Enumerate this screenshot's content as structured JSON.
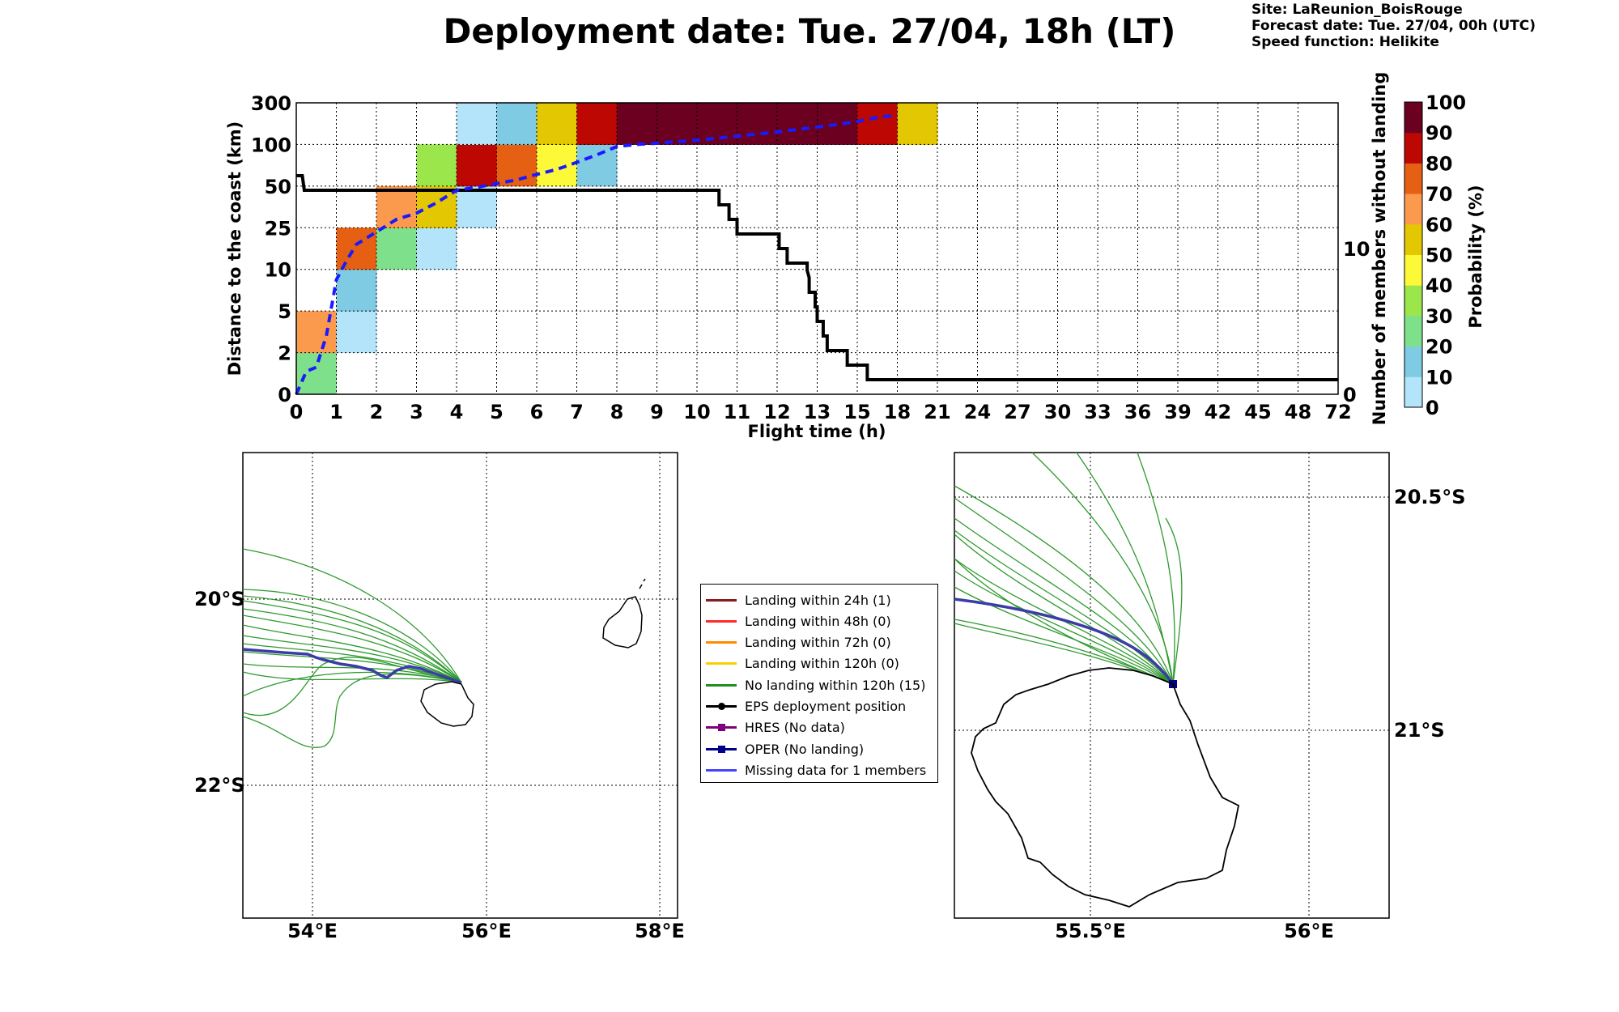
{
  "title": "Deployment date: Tue. 27/04, 18h (LT)",
  "info": {
    "site": "Site: LaReunion_BoisRouge",
    "forecast": "Forecast date: Tue. 27/04, 00h (UTC)",
    "speed": "Speed function: Helikite"
  },
  "chart_data": [
    {
      "type": "heatmap",
      "xlabel": "Flight time (h)",
      "ylabel": "Distance to the coast (km)",
      "y2label": "Number of members without landing",
      "x_ticks": [
        "0",
        "1",
        "2",
        "3",
        "4",
        "5",
        "6",
        "7",
        "8",
        "9",
        "10",
        "11",
        "12",
        "13",
        "15",
        "18",
        "21",
        "24",
        "27",
        "30",
        "33",
        "36",
        "39",
        "42",
        "45",
        "48",
        "72"
      ],
      "y_ticks": [
        "0",
        "2",
        "5",
        "10",
        "25",
        "50",
        "100",
        "300"
      ],
      "y2_ticks": [
        "0",
        "10"
      ],
      "colorbar": {
        "label": "Probability (%)",
        "ticks": [
          "0",
          "10",
          "20",
          "30",
          "40",
          "50",
          "60",
          "70",
          "80",
          "90",
          "100"
        ],
        "colors": [
          "#b3e4f9",
          "#7fcbe3",
          "#7fe08c",
          "#9be64b",
          "#fcf938",
          "#e4c703",
          "#fb9a4d",
          "#e66013",
          "#bc0703",
          "#6b0020"
        ]
      },
      "cells": [
        {
          "t": 0,
          "d": 0,
          "p": 20
        },
        {
          "t": 0,
          "d": 1,
          "p": 60
        },
        {
          "t": 1,
          "d": 1,
          "p": 0
        },
        {
          "t": 1,
          "d": 2,
          "p": 10
        },
        {
          "t": 1,
          "d": 3,
          "p": 70
        },
        {
          "t": 2,
          "d": 3,
          "p": 20
        },
        {
          "t": 2,
          "d": 4,
          "p": 60
        },
        {
          "t": 3,
          "d": 3,
          "p": 0
        },
        {
          "t": 3,
          "d": 4,
          "p": 50
        },
        {
          "t": 3,
          "d": 5,
          "p": 30
        },
        {
          "t": 4,
          "d": 4,
          "p": 0
        },
        {
          "t": 4,
          "d": 5,
          "p": 80
        },
        {
          "t": 4,
          "d": 6,
          "p": 0
        },
        {
          "t": 5,
          "d": 5,
          "p": 70
        },
        {
          "t": 5,
          "d": 6,
          "p": 10
        },
        {
          "t": 6,
          "d": 5,
          "p": 40
        },
        {
          "t": 6,
          "d": 6,
          "p": 50
        },
        {
          "t": 7,
          "d": 5,
          "p": 10
        },
        {
          "t": 7,
          "d": 6,
          "p": 80
        },
        {
          "t": 8,
          "d": 6,
          "p": 90
        },
        {
          "t": 9,
          "d": 6,
          "p": 90
        },
        {
          "t": 10,
          "d": 6,
          "p": 90
        },
        {
          "t": 11,
          "d": 6,
          "p": 90
        },
        {
          "t": 12,
          "d": 6,
          "p": 90
        },
        {
          "t": 13,
          "d": 6,
          "p": 90
        },
        {
          "t": 14,
          "d": 6,
          "p": 80
        },
        {
          "t": 15,
          "d": 6,
          "p": 50
        }
      ],
      "median_distance": {
        "x": [
          0,
          0.25,
          0.5,
          0.75,
          1,
          1.25,
          1.5,
          2,
          2.5,
          3,
          3.5,
          4,
          4.5,
          5,
          5.5,
          6,
          6.5,
          7,
          7.5,
          8,
          8.5,
          9,
          9.5,
          10,
          10.5,
          11,
          11.5,
          12,
          12.5,
          13,
          13.5,
          14,
          14.5,
          15
        ],
        "y": [
          0,
          0.55,
          0.65,
          1.4,
          2.75,
          3.2,
          3.6,
          3.9,
          4.2,
          4.35,
          4.6,
          4.9,
          4.97,
          5.06,
          5.15,
          5.28,
          5.4,
          5.57,
          5.75,
          5.95,
          6.0,
          6.03,
          6.07,
          6.1,
          6.15,
          6.2,
          6.25,
          6.3,
          6.36,
          6.42,
          6.48,
          6.55,
          6.65,
          6.7
        ]
      },
      "members_without_landing": {
        "x": [
          0,
          0.15,
          0.2,
          0.25,
          10.35,
          10.55,
          10.55,
          10.8,
          10.8,
          11,
          11,
          12.05,
          12.05,
          12.25,
          12.25,
          12.75,
          12.75,
          12.8,
          12.8,
          12.95,
          12.95,
          13,
          13,
          13.15,
          13.15,
          13.25,
          13.25,
          13.75,
          13.75,
          14.25,
          14.25,
          14.9,
          14.9
        ],
        "y": [
          15,
          15,
          14,
          14,
          14,
          14,
          13,
          13,
          12,
          12,
          11,
          11,
          10,
          10,
          9,
          9,
          8.5,
          8,
          7,
          7,
          6,
          6,
          5,
          5,
          4,
          4,
          3,
          3,
          2,
          2,
          1,
          1,
          1
        ]
      }
    }
  ],
  "maps": {
    "left": {
      "lat_labels": [
        "20°S",
        "22°S"
      ],
      "lon_labels": [
        "54°E",
        "56°E",
        "58°E"
      ]
    },
    "right": {
      "lat_labels": [
        "20.5°S",
        "21°S"
      ],
      "lon_labels": [
        "55.5°E",
        "56°E"
      ]
    }
  },
  "legend": [
    {
      "label": "Landing within 24h (1)",
      "color": "#8b1a1a",
      "marker": "none"
    },
    {
      "label": "Landing within 48h (0)",
      "color": "#ff2a2a",
      "marker": "none"
    },
    {
      "label": "Landing within 72h (0)",
      "color": "#ff8c00",
      "marker": "none"
    },
    {
      "label": "Landing within 120h (0)",
      "color": "#f5d000",
      "marker": "none"
    },
    {
      "label": "No landing within 120h (15)",
      "color": "#1f8f1f",
      "marker": "none"
    },
    {
      "label": "EPS deployment position",
      "color": "#000000",
      "marker": "circle"
    },
    {
      "label": "HRES (No data)",
      "color": "#7f007f",
      "marker": "square"
    },
    {
      "label": "OPER (No landing)",
      "color": "#00008b",
      "marker": "square"
    },
    {
      "label": "Missing data for 1 members",
      "color": "#4444ff",
      "marker": "none"
    }
  ]
}
